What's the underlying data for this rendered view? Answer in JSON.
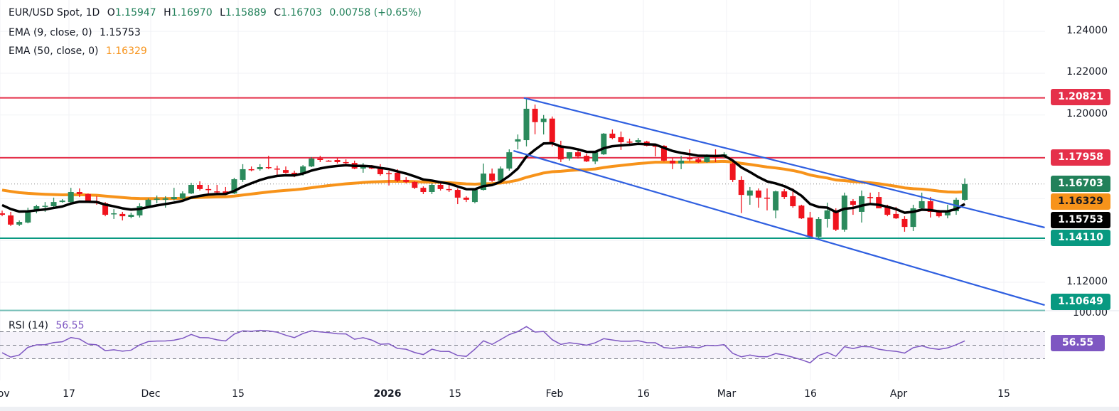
{
  "header": {
    "title": "EUR/USD Spot, 1D",
    "open_label": "O",
    "open": "1.15947",
    "high_label": "H",
    "high": "1.16970",
    "low_label": "L",
    "low": "1.15889",
    "close_label": "C",
    "close": "1.16703",
    "change": "0.00758 (+0.65%)"
  },
  "indicators": {
    "ema9": {
      "label": "EMA (9, close, 0)",
      "value": "1.15753",
      "color": "#000000"
    },
    "ema50": {
      "label": "EMA (50, close, 0)",
      "value": "1.16329",
      "color": "#f7931a"
    },
    "rsi": {
      "label": "RSI (14)",
      "value": "56.55",
      "color": "#7e57c2",
      "levels": [
        70,
        50,
        30
      ],
      "axis_label": "100.00"
    }
  },
  "chart_data": {
    "type": "candlestick",
    "up_color": "#2b8a5c",
    "down_color": "#f0141e",
    "price_axis": {
      "ticks": [
        "1.24000",
        "1.22000",
        "1.20000",
        "1.12000"
      ],
      "grid": true
    },
    "x_ticks": [
      "Nov",
      "17",
      "Dec",
      "15",
      "2026",
      "15",
      "Feb",
      "16",
      "Mar",
      "16",
      "Apr",
      "15"
    ],
    "levels": [
      {
        "price": "1.20821",
        "color": "#e5304a"
      },
      {
        "price": "1.17958",
        "color": "#e5304a"
      },
      {
        "price": "1.14110",
        "color": "#089981"
      },
      {
        "price": "1.10649",
        "color": "#089981"
      }
    ],
    "last_price": {
      "price": "1.16703",
      "color": "#22815a"
    },
    "ema_badges": [
      {
        "price": "1.16329",
        "color": "#f7931a"
      },
      {
        "price": "1.15753",
        "color": "#000000"
      }
    ],
    "trendlines": [
      {
        "from": {
          "bar": 60.7,
          "price": 1.2082
        },
        "to": {
          "bar": 121.3,
          "price": 1.1462
        },
        "color": "#2f5fe0"
      },
      {
        "from": {
          "bar": 59.5,
          "price": 1.1829
        },
        "to": {
          "bar": 121.3,
          "price": 1.1091
        },
        "color": "#2f5fe0"
      }
    ],
    "ohlc": [
      [
        1.153,
        1.1543,
        1.1516,
        1.1523
      ],
      [
        1.152,
        1.1537,
        1.1469,
        1.1476
      ],
      [
        1.1476,
        1.1496,
        1.1469,
        1.1489
      ],
      [
        1.1486,
        1.1557,
        1.1482,
        1.1543
      ],
      [
        1.1547,
        1.1571,
        1.153,
        1.1564
      ],
      [
        1.1564,
        1.1584,
        1.1537,
        1.1566
      ],
      [
        1.1564,
        1.1605,
        1.1557,
        1.1584
      ],
      [
        1.1584,
        1.1598,
        1.1581,
        1.1591
      ],
      [
        1.1584,
        1.1652,
        1.1581,
        1.1632
      ],
      [
        1.1632,
        1.1649,
        1.1608,
        1.1622
      ],
      [
        1.1622,
        1.1625,
        1.1581,
        1.1584
      ],
      [
        1.1588,
        1.1612,
        1.1571,
        1.1578
      ],
      [
        1.1578,
        1.1584,
        1.1516,
        1.1523
      ],
      [
        1.1527,
        1.155,
        1.1503,
        1.153
      ],
      [
        1.1527,
        1.1537,
        1.1496,
        1.1516
      ],
      [
        1.1513,
        1.1533,
        1.1506,
        1.1523
      ],
      [
        1.152,
        1.1578,
        1.151,
        1.1564
      ],
      [
        1.1564,
        1.1601,
        1.1557,
        1.1595
      ],
      [
        1.1597,
        1.1615,
        1.1578,
        1.16
      ],
      [
        1.1595,
        1.1612,
        1.1557,
        1.1601
      ],
      [
        1.1598,
        1.1652,
        1.1591,
        1.1608
      ],
      [
        1.1601,
        1.1635,
        1.1598,
        1.1625
      ],
      [
        1.1625,
        1.1676,
        1.1622,
        1.1666
      ],
      [
        1.1666,
        1.1683,
        1.1639,
        1.1646
      ],
      [
        1.1646,
        1.1666,
        1.1625,
        1.1645
      ],
      [
        1.1635,
        1.1666,
        1.1625,
        1.1632
      ],
      [
        1.1635,
        1.1656,
        1.1618,
        1.1625
      ],
      [
        1.1625,
        1.17,
        1.1622,
        1.1693
      ],
      [
        1.169,
        1.1765,
        1.168,
        1.1741
      ],
      [
        1.1741,
        1.1754,
        1.1731,
        1.1738
      ],
      [
        1.1741,
        1.1765,
        1.1734,
        1.1751
      ],
      [
        1.1751,
        1.1805,
        1.1741,
        1.1748
      ],
      [
        1.1744,
        1.1758,
        1.171,
        1.1741
      ],
      [
        1.1737,
        1.1754,
        1.172,
        1.1724
      ],
      [
        1.1724,
        1.1734,
        1.1703,
        1.171
      ],
      [
        1.1717,
        1.1761,
        1.171,
        1.1754
      ],
      [
        1.1754,
        1.1799,
        1.1751,
        1.1792
      ],
      [
        1.1792,
        1.1805,
        1.1775,
        1.1785
      ],
      [
        1.1782,
        1.1785,
        1.1778,
        1.1781
      ],
      [
        1.1785,
        1.1795,
        1.1768,
        1.1775
      ],
      [
        1.1775,
        1.1788,
        1.1761,
        1.1774
      ],
      [
        1.1771,
        1.1782,
        1.1741,
        1.1744
      ],
      [
        1.1744,
        1.1771,
        1.1724,
        1.1758
      ],
      [
        1.1751,
        1.1761,
        1.1741,
        1.1744
      ],
      [
        1.1748,
        1.1765,
        1.171,
        1.1717
      ],
      [
        1.1722,
        1.1734,
        1.1663,
        1.172
      ],
      [
        1.1724,
        1.1741,
        1.168,
        1.1686
      ],
      [
        1.169,
        1.1703,
        1.1673,
        1.168
      ],
      [
        1.168,
        1.1683,
        1.1646,
        1.1652
      ],
      [
        1.1652,
        1.1659,
        1.1622,
        1.1632
      ],
      [
        1.1632,
        1.1673,
        1.1622,
        1.1666
      ],
      [
        1.1666,
        1.1673,
        1.1639,
        1.1646
      ],
      [
        1.1646,
        1.1673,
        1.1632,
        1.1645
      ],
      [
        1.1642,
        1.1649,
        1.1574,
        1.1605
      ],
      [
        1.1605,
        1.1612,
        1.1584,
        1.1595
      ],
      [
        1.1584,
        1.1649,
        1.1578,
        1.1642
      ],
      [
        1.1642,
        1.1768,
        1.1639,
        1.172
      ],
      [
        1.172,
        1.1744,
        1.168,
        1.1686
      ],
      [
        1.1686,
        1.1754,
        1.168,
        1.1744
      ],
      [
        1.1744,
        1.1836,
        1.1734,
        1.1822
      ],
      [
        1.1873,
        1.1907,
        1.1836,
        1.1884
      ],
      [
        1.188,
        1.2082,
        1.185,
        1.203
      ],
      [
        1.203,
        1.205,
        1.1908,
        1.1966
      ],
      [
        1.1966,
        1.2,
        1.1907,
        1.1983
      ],
      [
        1.1983,
        1.1993,
        1.185,
        1.187
      ],
      [
        1.185,
        1.1877,
        1.1775,
        1.1788
      ],
      [
        1.1792,
        1.1822,
        1.1782,
        1.1822
      ],
      [
        1.1822,
        1.1836,
        1.1792,
        1.1802
      ],
      [
        1.1805,
        1.1816,
        1.1775,
        1.1778
      ],
      [
        1.1778,
        1.1826,
        1.1765,
        1.1822
      ],
      [
        1.1812,
        1.1914,
        1.1809,
        1.1911
      ],
      [
        1.1911,
        1.1931,
        1.1884,
        1.189
      ],
      [
        1.1894,
        1.1921,
        1.1833,
        1.187
      ],
      [
        1.1873,
        1.1887,
        1.186,
        1.187
      ],
      [
        1.187,
        1.189,
        1.1866,
        1.188
      ],
      [
        1.1873,
        1.1877,
        1.185,
        1.1853
      ],
      [
        1.1853,
        1.186,
        1.1802,
        1.1851
      ],
      [
        1.1853,
        1.1856,
        1.1778,
        1.1782
      ],
      [
        1.1782,
        1.1795,
        1.1741,
        1.1768
      ],
      [
        1.1768,
        1.1805,
        1.1741,
        1.1782
      ],
      [
        1.1795,
        1.1836,
        1.1778,
        1.1788
      ],
      [
        1.1788,
        1.1795,
        1.1771,
        1.1775
      ],
      [
        1.1775,
        1.1812,
        1.1771,
        1.1805
      ],
      [
        1.1802,
        1.1836,
        1.1775,
        1.18
      ],
      [
        1.1802,
        1.1822,
        1.1795,
        1.1812
      ],
      [
        1.1768,
        1.1782,
        1.168,
        1.169
      ],
      [
        1.169,
        1.1707,
        1.1531,
        1.1618
      ],
      [
        1.1615,
        1.1656,
        1.1571,
        1.1639
      ],
      [
        1.1639,
        1.1649,
        1.1557,
        1.1605
      ],
      [
        1.1605,
        1.1649,
        1.1544,
        1.1601
      ],
      [
        1.1544,
        1.1639,
        1.1506,
        1.1635
      ],
      [
        1.1635,
        1.1646,
        1.1598,
        1.1608
      ],
      [
        1.1612,
        1.1649,
        1.1557,
        1.1564
      ],
      [
        1.1567,
        1.1571,
        1.1503,
        1.1506
      ],
      [
        1.151,
        1.1537,
        1.1411,
        1.1418
      ],
      [
        1.1418,
        1.1513,
        1.1414,
        1.1503
      ],
      [
        1.1503,
        1.1581,
        1.1462,
        1.1544
      ],
      [
        1.1544,
        1.1554,
        1.1445,
        1.1452
      ],
      [
        1.1452,
        1.1629,
        1.1442,
        1.1615
      ],
      [
        1.1588,
        1.1598,
        1.1523,
        1.1571
      ],
      [
        1.1537,
        1.1639,
        1.1486,
        1.1612
      ],
      [
        1.1608,
        1.1629,
        1.1574,
        1.1606
      ],
      [
        1.1608,
        1.1632,
        1.1554,
        1.1554
      ],
      [
        1.1564,
        1.1571,
        1.1516,
        1.1523
      ],
      [
        1.1527,
        1.1561,
        1.1503,
        1.1506
      ],
      [
        1.1503,
        1.1516,
        1.1442,
        1.1465
      ],
      [
        1.1465,
        1.1571,
        1.1445,
        1.1554
      ],
      [
        1.1554,
        1.1629,
        1.1547,
        1.1588
      ],
      [
        1.1588,
        1.1608,
        1.151,
        1.1537
      ],
      [
        1.154,
        1.1547,
        1.151,
        1.1516
      ],
      [
        1.152,
        1.1571,
        1.1506,
        1.154
      ],
      [
        1.154,
        1.1605,
        1.1523,
        1.1595
      ],
      [
        1.15947,
        1.1697,
        1.15889,
        1.16703
      ]
    ]
  }
}
